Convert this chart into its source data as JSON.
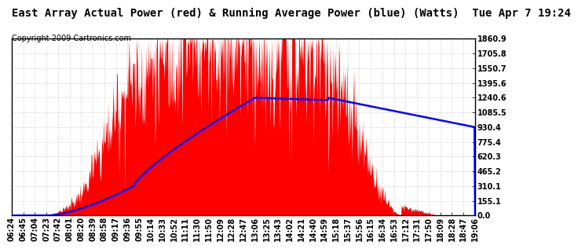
{
  "title": "East Array Actual Power (red) & Running Average Power (blue) (Watts)  Tue Apr 7 19:24",
  "copyright": "Copyright 2009 Cartronics.com",
  "background_color": "#ffffff",
  "plot_bg_color": "#ffffff",
  "grid_color": "#bbbbbb",
  "bar_color": "#ff0000",
  "avg_line_color": "#0000ff",
  "ylim": [
    0,
    1860.9
  ],
  "yticks": [
    0.0,
    155.1,
    310.1,
    465.2,
    620.3,
    775.4,
    930.4,
    1085.5,
    1240.6,
    1395.6,
    1550.7,
    1705.8,
    1860.9
  ],
  "ytick_labels": [
    "0.0",
    "155.1",
    "310.1",
    "465.2",
    "620.3",
    "775.4",
    "930.4",
    "1085.5",
    "1240.6",
    "1395.6",
    "1550.7",
    "1705.8",
    "1860.9"
  ],
  "xtick_labels": [
    "06:24",
    "06:45",
    "07:04",
    "07:23",
    "07:42",
    "08:01",
    "08:20",
    "08:39",
    "08:58",
    "09:17",
    "09:36",
    "09:55",
    "10:14",
    "10:33",
    "10:52",
    "11:11",
    "11:30",
    "11:50",
    "12:09",
    "12:28",
    "12:47",
    "13:06",
    "13:25",
    "13:43",
    "14:02",
    "14:21",
    "14:40",
    "14:59",
    "15:18",
    "15:37",
    "15:56",
    "16:15",
    "16:34",
    "16:53",
    "17:12",
    "17:31",
    "17:50",
    "18:09",
    "18:28",
    "18:47",
    "19:06"
  ],
  "title_fontsize": 10,
  "copyright_fontsize": 7,
  "tick_fontsize": 7
}
